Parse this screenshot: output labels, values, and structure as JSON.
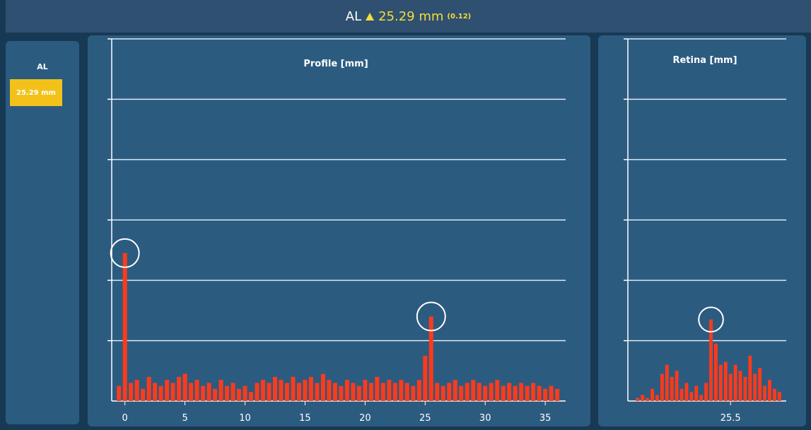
{
  "header": {
    "label": "AL",
    "value": "25.29 mm",
    "deviation": "(0.12)"
  },
  "sidebar": {
    "label": "AL",
    "value": "25.29 mm"
  },
  "chart_data": [
    {
      "type": "bar",
      "title": "Profile [mm]",
      "color": "#ff3a1a",
      "x": [
        -0.5,
        0,
        0.5,
        1,
        1.5,
        2,
        2.5,
        3,
        3.5,
        4,
        4.5,
        5,
        5.5,
        6,
        6.5,
        7,
        7.5,
        8,
        8.5,
        9,
        9.5,
        10,
        10.5,
        11,
        11.5,
        12,
        12.5,
        13,
        13.5,
        14,
        14.5,
        15,
        15.5,
        16,
        16.5,
        17,
        17.5,
        18,
        18.5,
        19,
        19.5,
        20,
        20.5,
        21,
        21.5,
        22,
        22.5,
        23,
        23.5,
        24,
        24.5,
        25,
        25.5,
        26,
        26.5,
        27,
        27.5,
        28,
        28.5,
        29,
        29.5,
        30,
        30.5,
        31,
        31.5,
        32,
        32.5,
        33,
        33.5,
        34,
        34.5,
        35,
        35.5,
        36
      ],
      "values": [
        0.25,
        2.45,
        0.3,
        0.35,
        0.2,
        0.4,
        0.3,
        0.25,
        0.35,
        0.3,
        0.4,
        0.45,
        0.3,
        0.35,
        0.25,
        0.3,
        0.2,
        0.35,
        0.25,
        0.3,
        0.2,
        0.25,
        0.15,
        0.3,
        0.35,
        0.3,
        0.4,
        0.35,
        0.3,
        0.4,
        0.3,
        0.35,
        0.4,
        0.3,
        0.45,
        0.35,
        0.3,
        0.25,
        0.35,
        0.3,
        0.25,
        0.35,
        0.3,
        0.4,
        0.3,
        0.35,
        0.3,
        0.35,
        0.3,
        0.25,
        0.35,
        0.75,
        1.4,
        0.3,
        0.25,
        0.3,
        0.35,
        0.25,
        0.3,
        0.35,
        0.3,
        0.25,
        0.3,
        0.35,
        0.25,
        0.3,
        0.25,
        0.3,
        0.25,
        0.3,
        0.25,
        0.2,
        0.25,
        0.2
      ],
      "xlim": [
        -1.1,
        36.7
      ],
      "xticks": [
        0,
        5,
        10,
        15,
        20,
        25,
        30,
        35
      ],
      "ylim": [
        0,
        6
      ],
      "grid_lines": [
        1,
        2,
        3,
        4,
        5,
        6
      ]
    },
    {
      "type": "bar",
      "title": "Retina [mm]",
      "color": "#ff3a1a",
      "x": [
        24.55,
        24.6,
        24.65,
        24.7,
        24.75,
        24.8,
        24.85,
        24.9,
        24.95,
        25.0,
        25.05,
        25.1,
        25.15,
        25.2,
        25.25,
        25.3,
        25.35,
        25.4,
        25.45,
        25.5,
        25.55,
        25.6,
        25.65,
        25.7,
        25.75,
        25.8,
        25.85,
        25.9,
        25.95,
        26.0
      ],
      "values": [
        0.05,
        0.1,
        0.05,
        0.2,
        0.1,
        0.45,
        0.6,
        0.4,
        0.5,
        0.2,
        0.3,
        0.15,
        0.25,
        0.1,
        0.3,
        1.35,
        0.95,
        0.6,
        0.65,
        0.45,
        0.6,
        0.5,
        0.4,
        0.75,
        0.45,
        0.55,
        0.25,
        0.35,
        0.2,
        0.15
      ],
      "xlim": [
        24.45,
        26.07
      ],
      "xticks": [
        25.5
      ],
      "ylim": [
        0,
        6
      ],
      "grid_lines": [
        1,
        2,
        3,
        4,
        5,
        6
      ]
    }
  ]
}
